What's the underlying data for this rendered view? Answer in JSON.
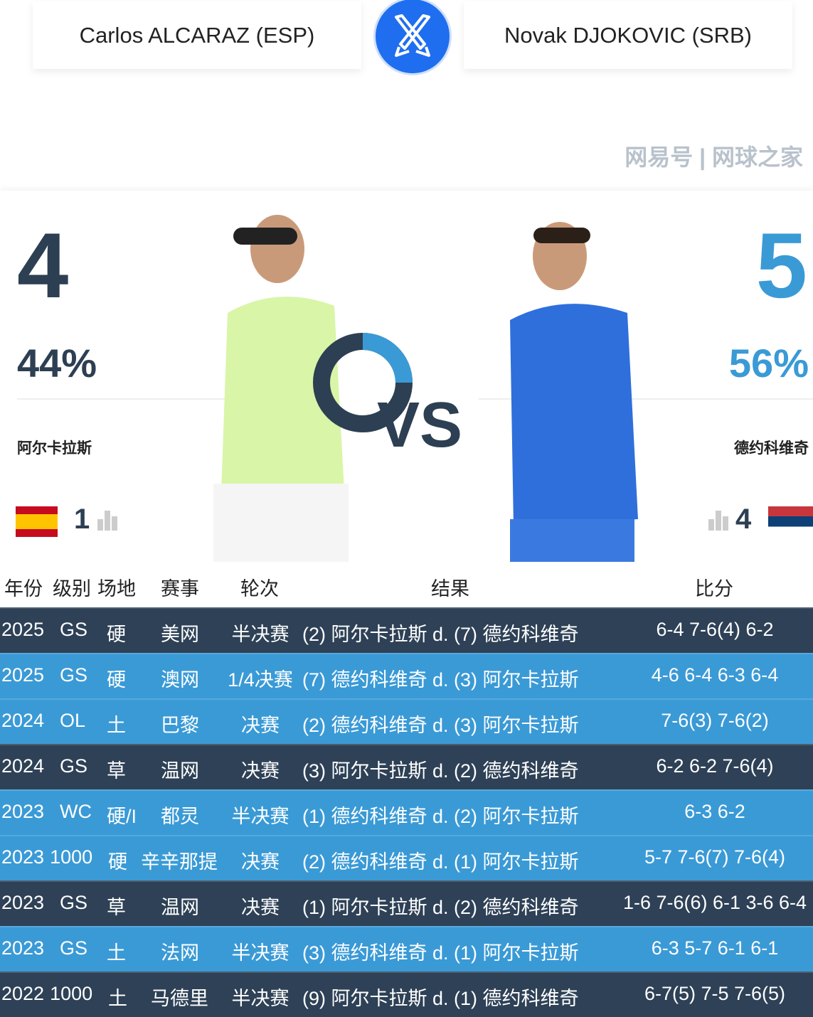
{
  "header": {
    "player1": "Carlos ALCARAZ (ESP)",
    "player2": "Novak DJOKOVIC (SRB)",
    "icon": "crossed-swords-icon"
  },
  "h2h": {
    "p1": {
      "wins": "4",
      "pct": "44%",
      "name_cn": "阿尔卡拉斯",
      "rank": "1",
      "flag": "spain"
    },
    "p2": {
      "wins": "5",
      "pct": "56%",
      "name_cn": "德约科维奇",
      "rank": "4",
      "flag": "serbia"
    },
    "vs": "VS"
  },
  "colors": {
    "dark": "#2e4156",
    "blue": "#3a9ad6",
    "p1": "#2d3f52",
    "p2": "#3a9ad6"
  },
  "table": {
    "headers": [
      "年份",
      "级别",
      "场地",
      "赛事",
      "轮次",
      "结果",
      "比分"
    ],
    "rows": [
      {
        "year": "2025",
        "level": "GS",
        "surface": "硬",
        "event": "美网",
        "round": "半决赛",
        "result": "(2) 阿尔卡拉斯 d. (7) 德约科维奇",
        "score": "6-4 7-6(4) 6-2",
        "style": "dark"
      },
      {
        "year": "2025",
        "level": "GS",
        "surface": "硬",
        "event": "澳网",
        "round": "1/4决赛",
        "result": "(7) 德约科维奇 d. (3) 阿尔卡拉斯",
        "score": "4-6 6-4 6-3 6-4",
        "style": "blue"
      },
      {
        "year": "2024",
        "level": "OL",
        "surface": "土",
        "event": "巴黎",
        "round": "决赛",
        "result": "(2) 德约科维奇 d. (3) 阿尔卡拉斯",
        "score": "7-6(3) 7-6(2)",
        "style": "blue"
      },
      {
        "year": "2024",
        "level": "GS",
        "surface": "草",
        "event": "温网",
        "round": "决赛",
        "result": "(3) 阿尔卡拉斯 d. (2) 德约科维奇",
        "score": "6-2 6-2 7-6(4)",
        "style": "dark"
      },
      {
        "year": "2023",
        "level": "WC",
        "surface": "硬/I",
        "event": "都灵",
        "round": "半决赛",
        "result": "(1) 德约科维奇 d. (2) 阿尔卡拉斯",
        "score": "6-3 6-2",
        "style": "blue"
      },
      {
        "year": "2023",
        "level": "1000",
        "surface": "硬",
        "event": "辛辛那提",
        "round": "决赛",
        "result": "(2) 德约科维奇 d. (1) 阿尔卡拉斯",
        "score": "5-7 7-6(7) 7-6(4)",
        "style": "blue"
      },
      {
        "year": "2023",
        "level": "GS",
        "surface": "草",
        "event": "温网",
        "round": "决赛",
        "result": "(1) 阿尔卡拉斯 d. (2) 德约科维奇",
        "score": "1-6 7-6(6) 6-1 3-6 6-4",
        "style": "dark"
      },
      {
        "year": "2023",
        "level": "GS",
        "surface": "土",
        "event": "法网",
        "round": "半决赛",
        "result": "(3) 德约科维奇 d. (1) 阿尔卡拉斯",
        "score": "6-3 5-7 6-1 6-1",
        "style": "blue"
      },
      {
        "year": "2022",
        "level": "1000",
        "surface": "土",
        "event": "马德里",
        "round": "半决赛",
        "result": "(9) 阿尔卡拉斯 d. (1) 德约科维奇",
        "score": "6-7(5) 7-5 7-6(5)",
        "style": "dark"
      }
    ]
  },
  "watermark": "网易号 | 网球之家"
}
